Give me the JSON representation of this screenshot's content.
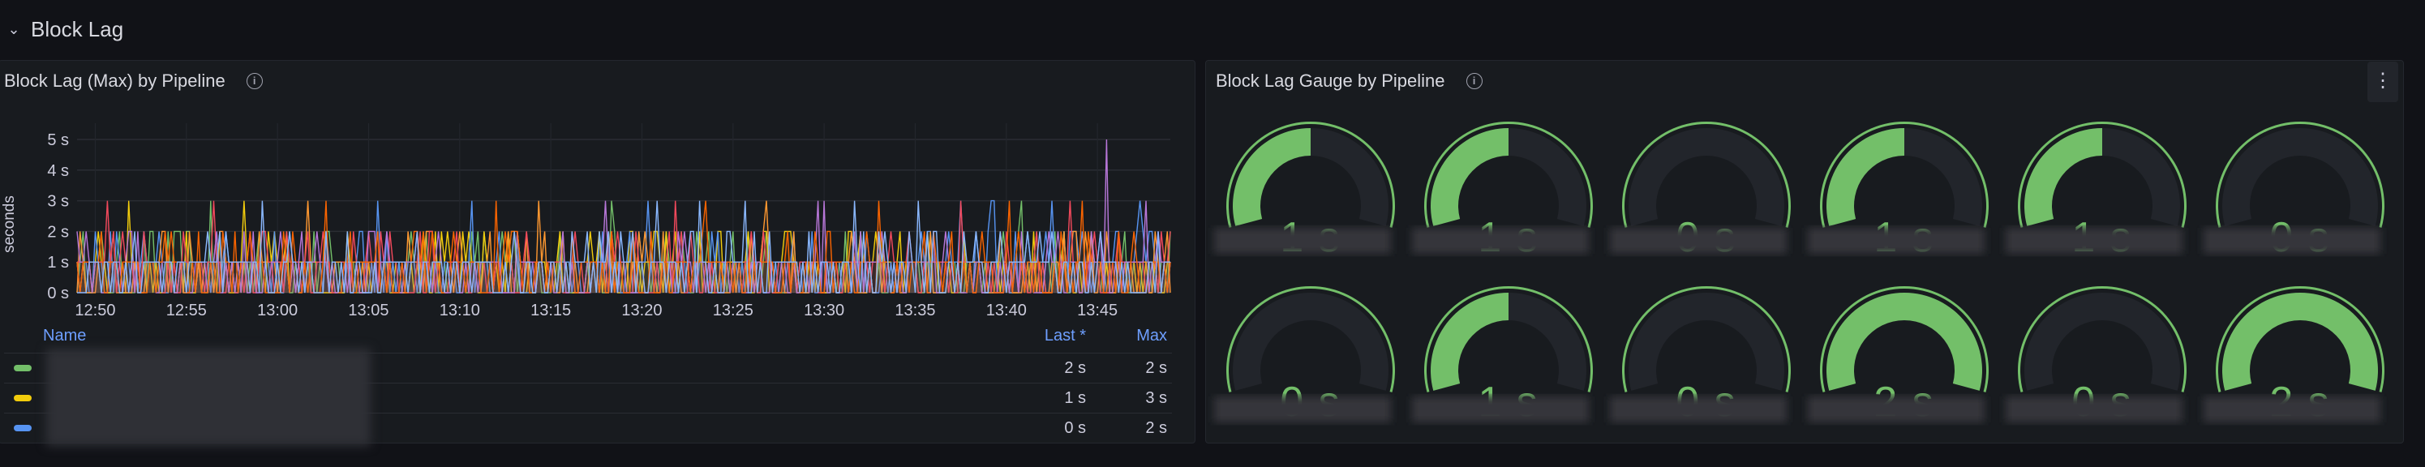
{
  "row": {
    "title": "Block Lag",
    "collapse_icon": "chevron-down-icon"
  },
  "timeseries_panel": {
    "title": "Block Lag (Max) by Pipeline",
    "info_icon": "info-circle-icon",
    "legend": {
      "headers": {
        "name": "Name",
        "last": "Last *",
        "max": "Max"
      },
      "rows": [
        {
          "color": "#73bf69",
          "last": "2 s",
          "max": "2 s"
        },
        {
          "color": "#f2cc0c",
          "last": "1 s",
          "max": "3 s"
        },
        {
          "color": "#5794f2",
          "last": "0 s",
          "max": "2 s"
        }
      ]
    }
  },
  "chart_data": {
    "type": "line",
    "ylabel": "seconds",
    "ylim": [
      0,
      5
    ],
    "yticks": [
      "0 s",
      "1 s",
      "2 s",
      "3 s",
      "4 s",
      "5 s"
    ],
    "xticks": [
      "12:50",
      "12:55",
      "13:00",
      "13:05",
      "13:10",
      "13:15",
      "13:20",
      "13:25",
      "13:30",
      "13:35",
      "13:40",
      "13:45"
    ],
    "xlim": [
      "12:49",
      "13:49"
    ],
    "grid": true,
    "series_colors": [
      "#73bf69",
      "#f2cc0c",
      "#5794f2",
      "#ff9830",
      "#f2495c",
      "#b877d9",
      "#fa6400",
      "#8ab8ff"
    ],
    "peak": {
      "time": "13:45.5",
      "value": 5
    }
  },
  "gauge_panel": {
    "title": "Block Lag Gauge by Pipeline",
    "info_icon": "info-circle-icon",
    "menu_icon": "kebab-menu-icon",
    "max": 2,
    "color": "#73bf69",
    "gauges": [
      {
        "value": 1,
        "label": "1 s"
      },
      {
        "value": 1,
        "label": "1 s"
      },
      {
        "value": 0,
        "label": "0 s"
      },
      {
        "value": 1,
        "label": "1 s"
      },
      {
        "value": 1,
        "label": "1 s"
      },
      {
        "value": 0,
        "label": "0 s"
      },
      {
        "value": 0,
        "label": "0 s"
      },
      {
        "value": 1,
        "label": "1 s"
      },
      {
        "value": 0,
        "label": "0 s"
      },
      {
        "value": 2,
        "label": "2 s"
      },
      {
        "value": 0,
        "label": "0 s"
      },
      {
        "value": 2,
        "label": "2 s"
      }
    ]
  }
}
